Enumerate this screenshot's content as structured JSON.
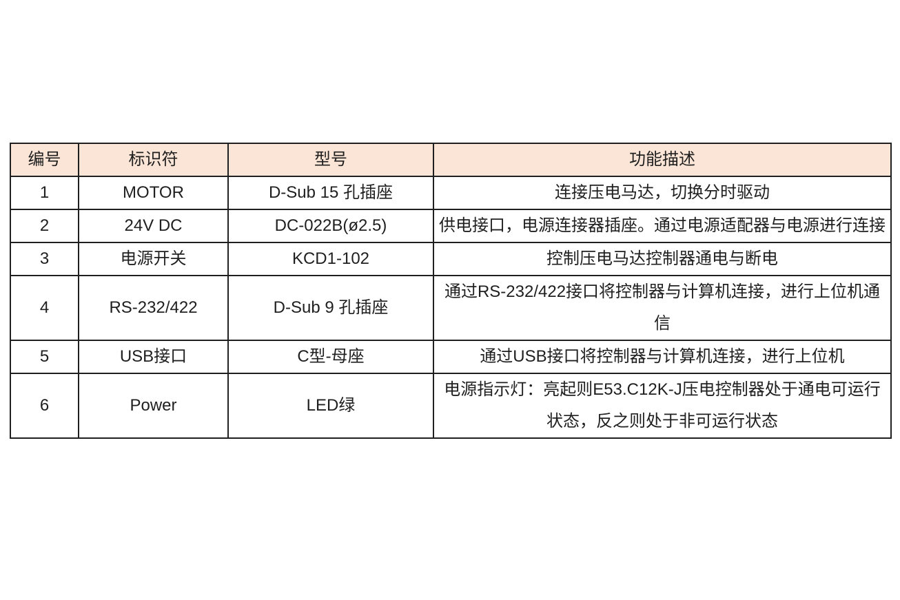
{
  "table": {
    "name": "controller-interface-spec-table",
    "header_bg": "#FBE5D6",
    "border_color": "#1f1f1f",
    "headers": [
      "编号",
      "标识符",
      "型号",
      "功能描述"
    ],
    "columns": [
      "id",
      "identifier",
      "model",
      "description"
    ],
    "rows": [
      {
        "id": "1",
        "identifier": "MOTOR",
        "model": "D-Sub 15 孔插座",
        "description": "连接压电马达，切换分时驱动"
      },
      {
        "id": "2",
        "identifier": "24V DC",
        "model": "DC-022B(ø2.5)",
        "description": "供电接口，电源连接器插座。通过电源适配器与电源进行连接"
      },
      {
        "id": "3",
        "identifier": "电源开关",
        "model": "KCD1-102",
        "description": "控制压电马达控制器通电与断电"
      },
      {
        "id": "4",
        "identifier": "RS-232/422",
        "model": "D-Sub 9 孔插座",
        "description": "通过RS-232/422接口将控制器与计算机连接，进行上位机通信"
      },
      {
        "id": "5",
        "identifier": "USB接口",
        "model": "C型-母座",
        "description": "通过USB接口将控制器与计算机连接，进行上位机"
      },
      {
        "id": "6",
        "identifier": "Power",
        "model": "LED绿",
        "description": "电源指示灯：亮起则E53.C12K-J压电控制器处于通电可运行状态，反之则处于非可运行状态"
      }
    ]
  }
}
